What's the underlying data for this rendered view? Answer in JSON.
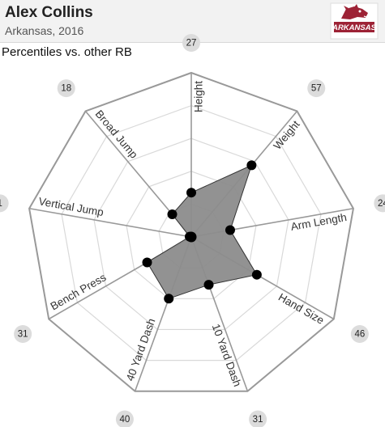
{
  "header": {
    "name": "Alex Collins",
    "subtitle": "Arkansas, 2016",
    "logo_text": "ARKANSAS",
    "logo_color": "#9d2235"
  },
  "chart_title": "Percentiles vs. other RB",
  "chart_data": {
    "type": "radar",
    "title": "Percentiles vs. other RB",
    "range": [
      0,
      100
    ],
    "axes": [
      "Height",
      "Weight",
      "Arm Length",
      "Hand Size",
      "10 Yard Dash",
      "40 Yard Dash",
      "Bench Press",
      "Vertical Jump",
      "Broad Jump"
    ],
    "values": [
      27,
      57,
      24,
      46,
      31,
      40,
      31,
      1,
      18
    ],
    "fill_color": "#8c8c8c",
    "grid_color": "#999999"
  }
}
